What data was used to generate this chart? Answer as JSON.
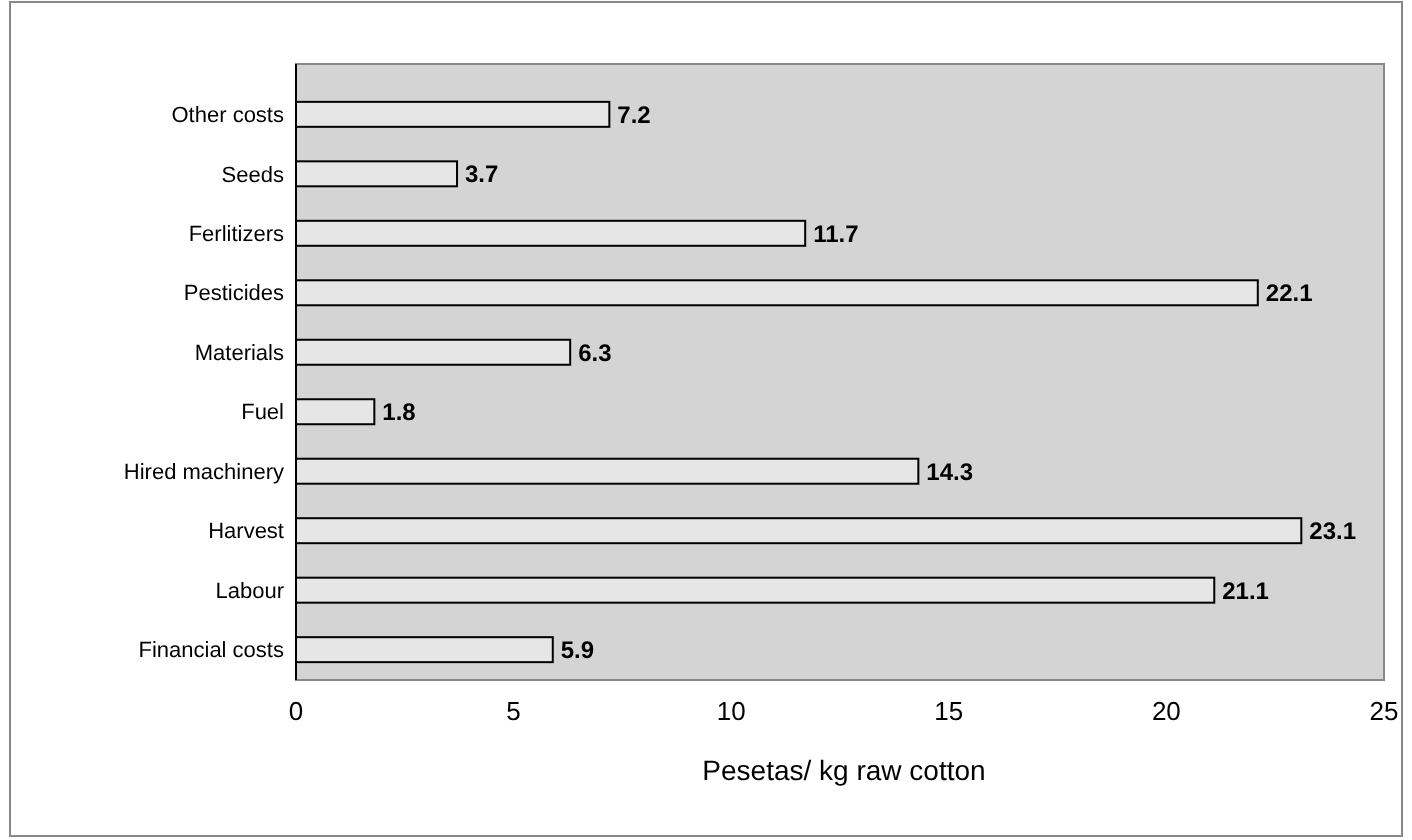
{
  "chart_data": {
    "type": "bar",
    "orientation": "horizontal",
    "xlabel": "Pesetas/ kg raw cotton",
    "categories": [
      "Other costs",
      "Seeds",
      "Ferlitizers",
      "Pesticides",
      "Materials",
      "Fuel",
      "Hired machinery",
      "Harvest",
      "Labour",
      "Financial costs"
    ],
    "values": [
      7.2,
      3.7,
      11.7,
      22.1,
      6.3,
      1.8,
      14.3,
      23.1,
      21.1,
      5.9
    ],
    "color": "#e6e6e6",
    "xlim": [
      0,
      25
    ],
    "xticks": [
      0,
      5,
      10,
      15,
      20,
      25
    ],
    "grid": false,
    "data_labels": true
  }
}
